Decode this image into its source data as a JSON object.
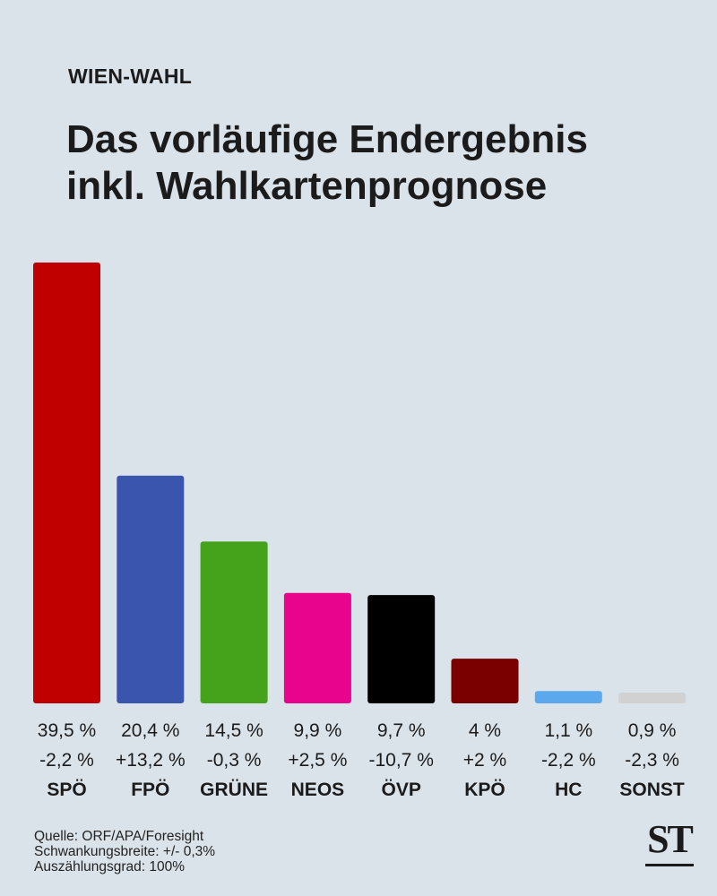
{
  "header": {
    "kicker": "WIEN-WAHL",
    "title_line1": "Das vorläufige Endergebnis",
    "title_line2": "inkl. Wahlkartenprognose"
  },
  "chart_data": {
    "type": "bar",
    "title": "Das vorläufige Endergebnis inkl. Wahlkartenprognose",
    "categories": [
      "SPÖ",
      "FPÖ",
      "GRÜNE",
      "NEOS",
      "ÖVP",
      "KPÖ",
      "HC",
      "SONST"
    ],
    "values": [
      39.5,
      20.4,
      14.5,
      9.9,
      9.7,
      4,
      1.1,
      0.9
    ],
    "value_labels": [
      "39,5 %",
      "20,4 %",
      "14,5 %",
      "9,9 %",
      "9,7 %",
      "4 %",
      "1,1 %",
      "0,9 %"
    ],
    "change_labels": [
      "-2,2 %",
      "+13,2 %",
      "-0,3 %",
      "+2,5 %",
      "-10,7 %",
      "+2 %",
      "-2,2 %",
      "-2,3 %"
    ],
    "colors": [
      "#c00000",
      "#3a55ad",
      "#45a31b",
      "#e8048c",
      "#000000",
      "#7a0000",
      "#5ba8ec",
      "#d1d1d1"
    ],
    "ylim": [
      0,
      39.5
    ],
    "xlabel": "",
    "ylabel": "",
    "grid": false
  },
  "footer": {
    "source": "Quelle: ORF/APA/Foresight",
    "margin": "Schwankungsbreite: +/- 0,3%",
    "counted": "Auszählungsgrad: 100%"
  },
  "logo": {
    "text": "ST"
  }
}
